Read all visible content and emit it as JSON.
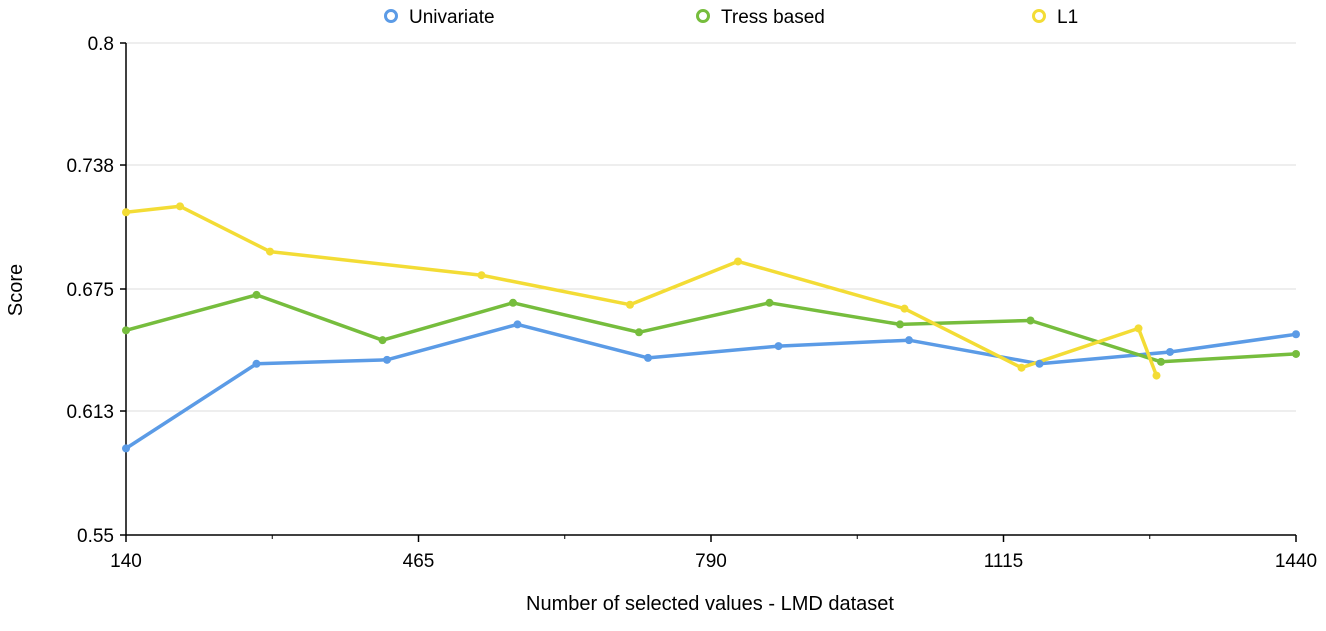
{
  "chart_data": {
    "type": "line",
    "title": "",
    "xlabel": "Number of selected values - LMD dataset",
    "ylabel": "Score",
    "xlim": [
      140,
      1440
    ],
    "ylim": [
      0.55,
      0.8
    ],
    "x_ticks": [
      140,
      465,
      790,
      1115,
      1440
    ],
    "x_tick_labels": [
      "140",
      "465",
      "790",
      "1115",
      "1440"
    ],
    "y_ticks": [
      0.55,
      0.613,
      0.675,
      0.738,
      0.8
    ],
    "y_tick_labels": [
      "0.55",
      "0.613",
      "0.675",
      "0.738",
      "0.8"
    ],
    "grid": true,
    "legend_position": "top",
    "series": [
      {
        "name": "Univariate",
        "color": "#5b9be6",
        "x": [
          140,
          285,
          430,
          575,
          720,
          865,
          1010,
          1155,
          1300,
          1440
        ],
        "y": [
          0.594,
          0.637,
          0.639,
          0.657,
          0.64,
          0.646,
          0.649,
          0.637,
          0.643,
          0.652
        ]
      },
      {
        "name": "Tress based",
        "color": "#76bd3d",
        "x": [
          140,
          285,
          425,
          570,
          710,
          855,
          1000,
          1145,
          1290,
          1440
        ],
        "y": [
          0.654,
          0.672,
          0.649,
          0.668,
          0.653,
          0.668,
          0.657,
          0.659,
          0.638,
          0.642
        ]
      },
      {
        "name": "L1",
        "color": "#f3dc35",
        "x": [
          140,
          200,
          300,
          535,
          700,
          820,
          1005,
          1135,
          1265,
          1285
        ],
        "y": [
          0.714,
          0.717,
          0.694,
          0.682,
          0.667,
          0.689,
          0.665,
          0.635,
          0.655,
          0.631
        ]
      }
    ]
  }
}
